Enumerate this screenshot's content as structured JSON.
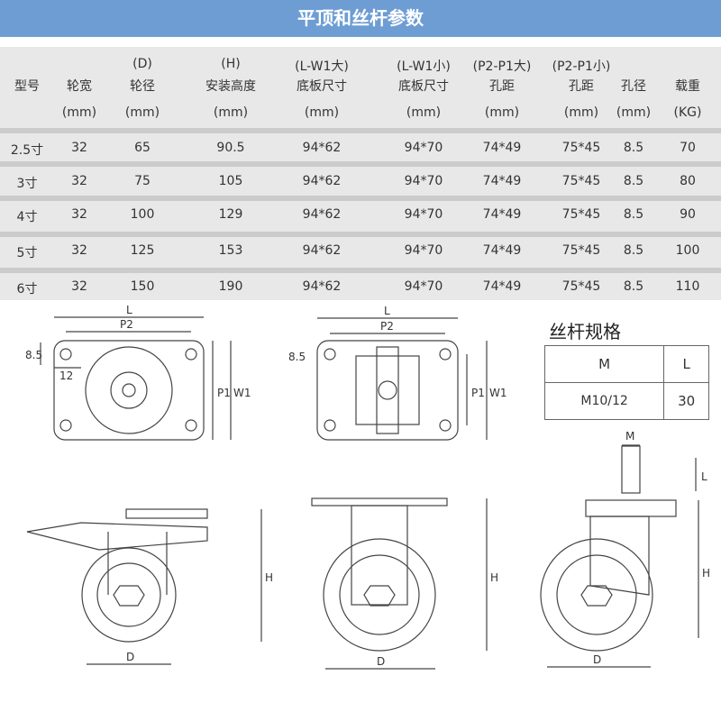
{
  "title": "平顶和丝杆参数",
  "table": {
    "headers": [
      {
        "l1": "",
        "l2": "型号",
        "l3": ""
      },
      {
        "l1": "",
        "l2": "轮宽",
        "l3": "(mm)"
      },
      {
        "l1": "(D)",
        "l2": "轮径",
        "l3": "(mm)"
      },
      {
        "l1": "(H)",
        "l2": "安装高度",
        "l3": "(mm)"
      },
      {
        "l1": "(L-W1大)",
        "l2": "底板尺寸",
        "l3": "(mm)"
      },
      {
        "l1": "(L-W1小)",
        "l2": "底板尺寸",
        "l3": "(mm)"
      },
      {
        "l1": "(P2-P1大)",
        "l2": "孔距",
        "l3": "(mm)"
      },
      {
        "l1": "(P2-P1小)",
        "l2": "孔距",
        "l3": "(mm)"
      },
      {
        "l1": "",
        "l2": "孔径",
        "l3": "(mm)"
      },
      {
        "l1": "",
        "l2": "载重",
        "l3": "(KG)"
      }
    ],
    "rows": [
      [
        "2.5寸",
        "32",
        "65",
        "90.5",
        "94*62",
        "94*70",
        "74*49",
        "75*45",
        "8.5",
        "70"
      ],
      [
        "3寸",
        "32",
        "75",
        "105",
        "94*62",
        "94*70",
        "74*49",
        "75*45",
        "8.5",
        "80"
      ],
      [
        "4寸",
        "32",
        "100",
        "129",
        "94*62",
        "94*70",
        "74*49",
        "75*45",
        "8.5",
        "90"
      ],
      [
        "5寸",
        "32",
        "125",
        "153",
        "94*62",
        "94*70",
        "74*49",
        "75*45",
        "8.5",
        "100"
      ],
      [
        "6寸",
        "32",
        "150",
        "190",
        "94*62",
        "94*70",
        "74*49",
        "75*45",
        "8.5",
        "110"
      ]
    ]
  },
  "screw_spec": {
    "title": "丝杆规格",
    "headers": [
      "M",
      "L"
    ],
    "values": [
      "M10/12",
      "30"
    ]
  },
  "dims": {
    "L": "L",
    "P2": "P2",
    "P1": "P1",
    "W1": "W1",
    "hole_offset": "8.5",
    "hole_edge": "12",
    "H": "H",
    "D": "D",
    "M": "M"
  },
  "colors": {
    "header_bg": "#6d9dd3",
    "table_bg": "#e8e8e8",
    "separator": "#cbcbcb"
  }
}
